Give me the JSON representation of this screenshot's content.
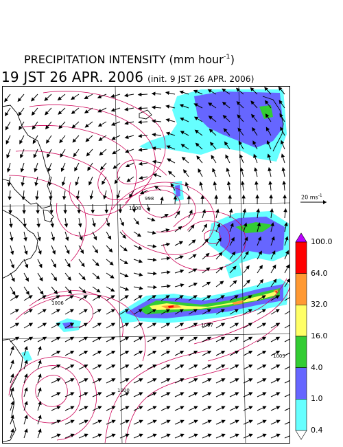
{
  "header": {
    "title": "PRECIPITATION INTENSITY (mm hour",
    "title_exp": "-1",
    "title_close": ")",
    "valid_time": "19 JST 26 APR. 2006",
    "init_time": "(init. 9 JST 26 APR. 2006)"
  },
  "wind_reference": {
    "label": "20 ms",
    "label_exp": "-1"
  },
  "colorbar": {
    "levels": [
      "100.0",
      "64.0",
      "32.0",
      "16.0",
      "4.0",
      "1.0",
      "0.4"
    ],
    "colors": [
      "#ff0000",
      "#ff9933",
      "#ffff66",
      "#33cc33",
      "#6666ff",
      "#66ffff"
    ],
    "over_color": "#bb00ff",
    "under_color": "#ffffff"
  },
  "isobars": {
    "color": "#cc0055",
    "labels": [
      "998",
      "1006",
      "1000",
      "1008",
      "1007",
      "1009"
    ]
  }
}
